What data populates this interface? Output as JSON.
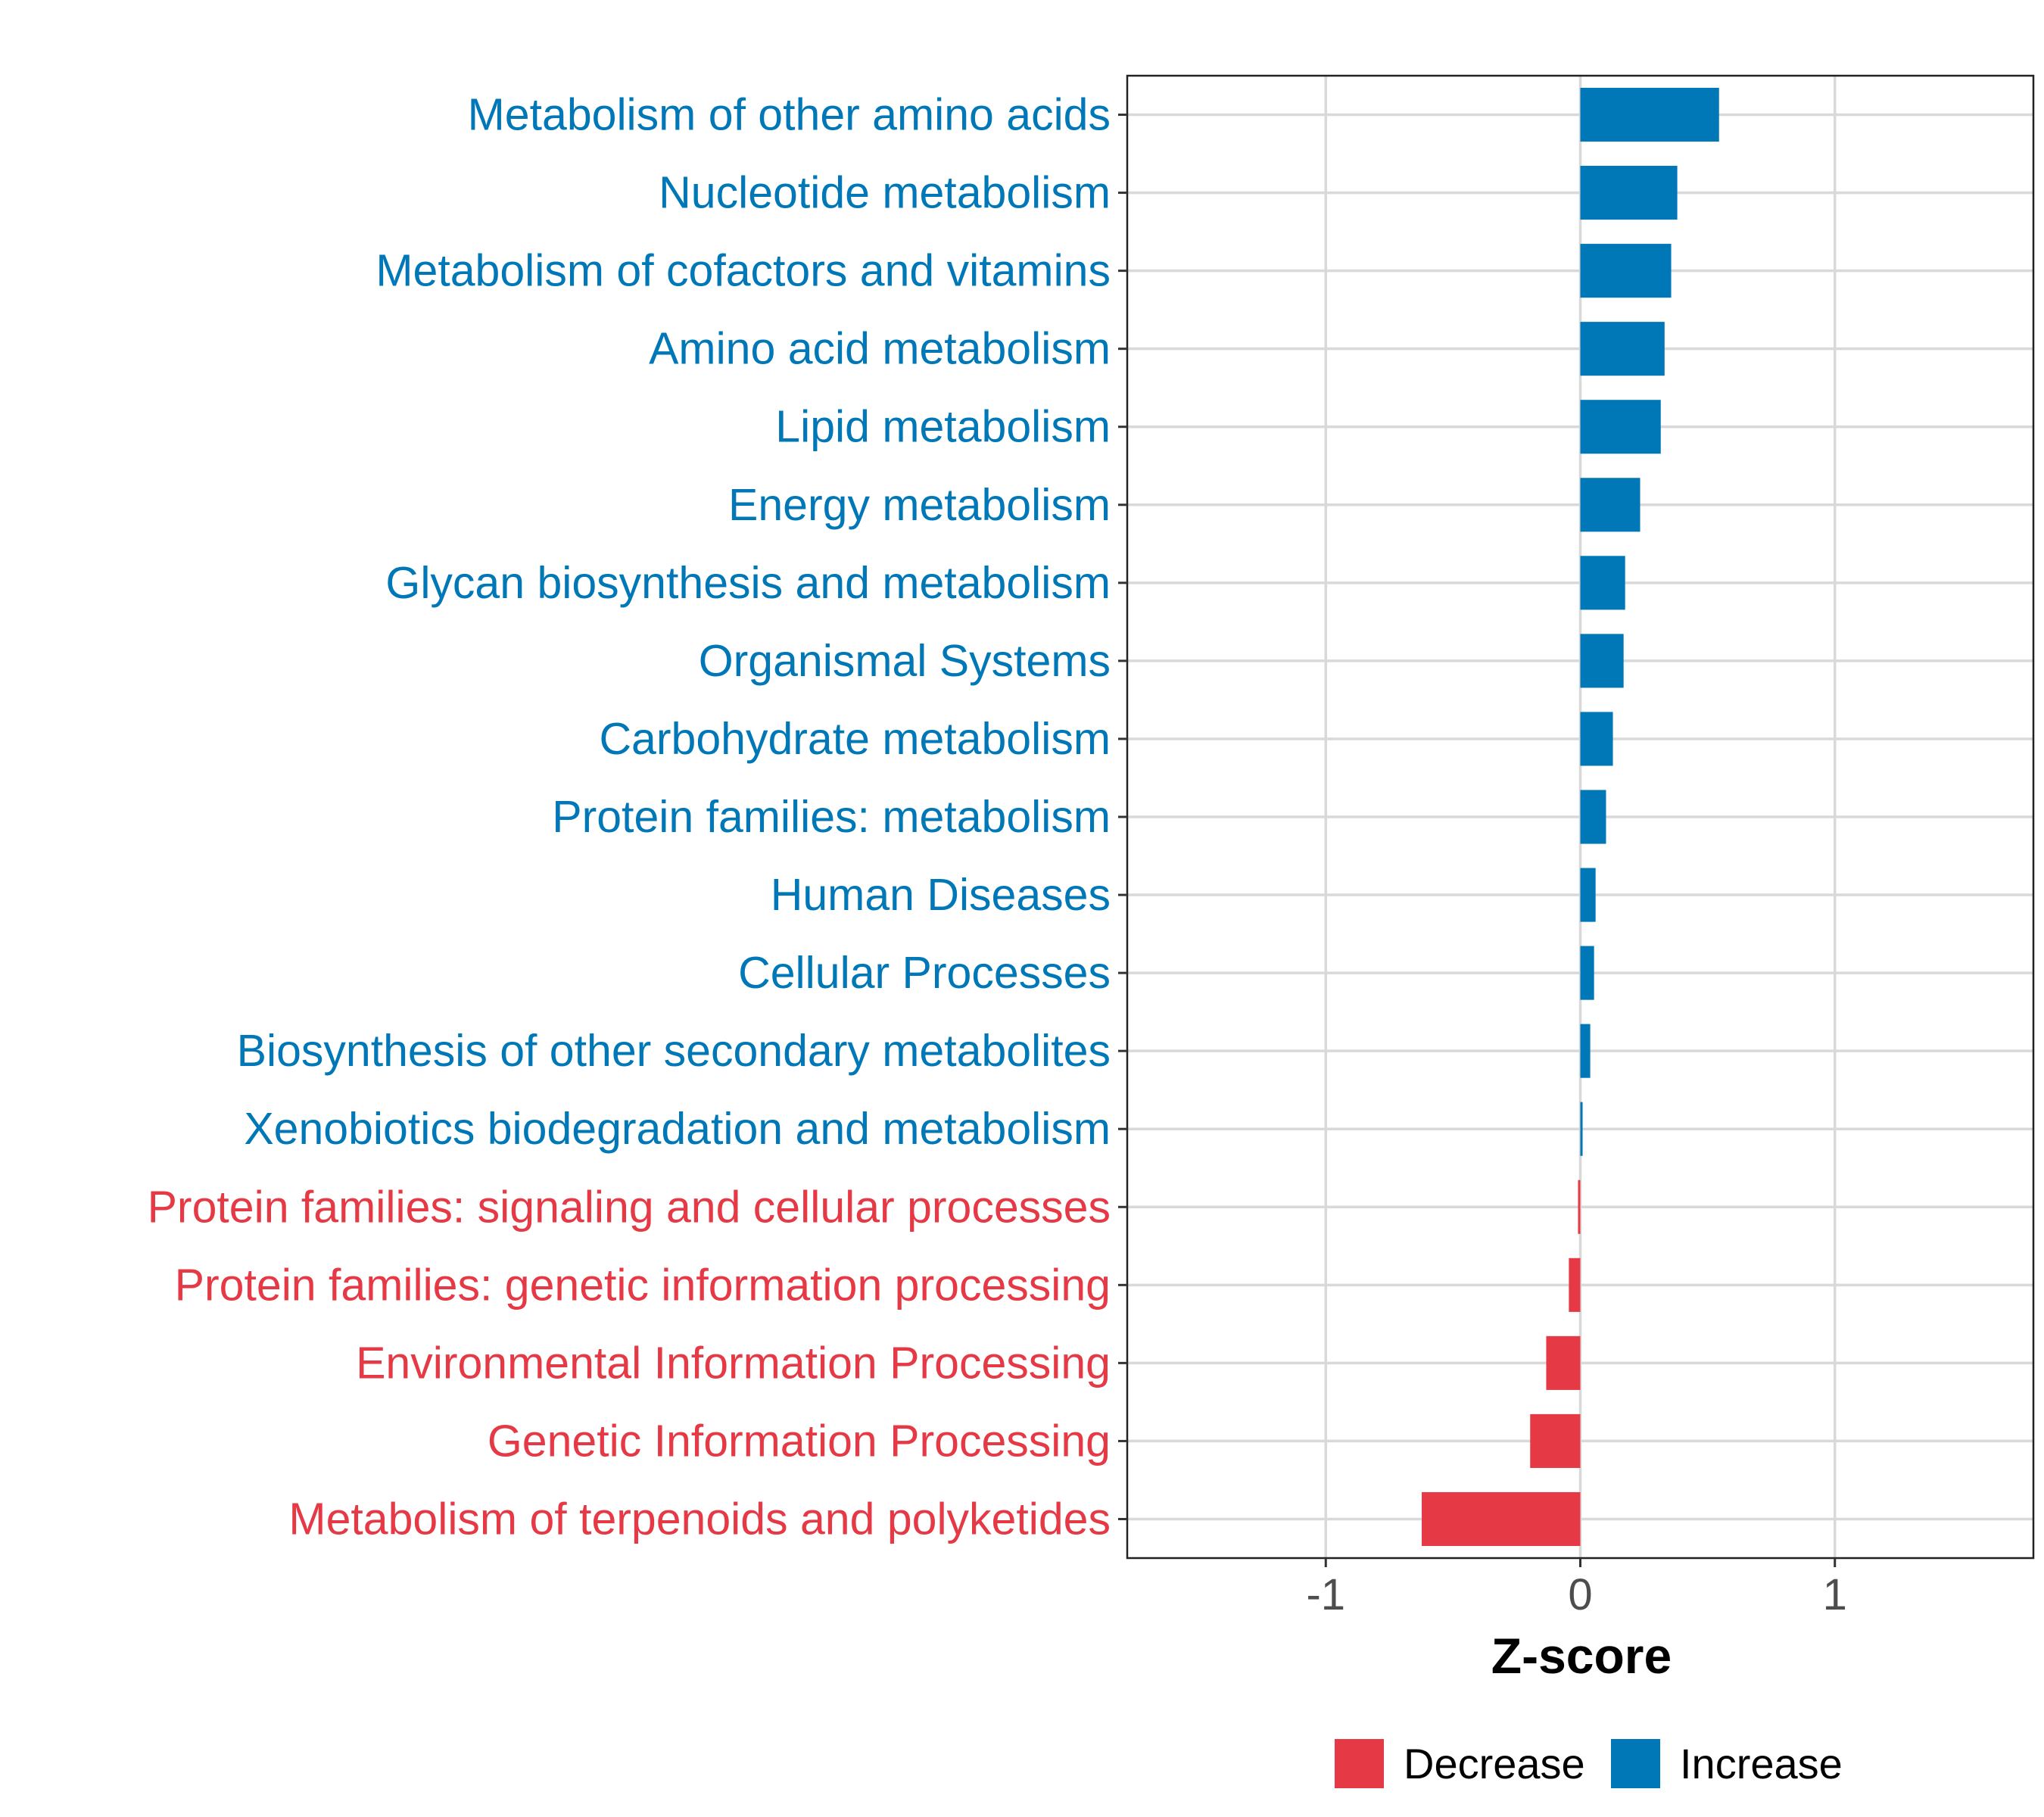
{
  "chart_data": {
    "type": "bar",
    "orientation": "horizontal",
    "title": "",
    "xlabel": "Z-score",
    "ylabel": "",
    "xlim": [
      -1.78,
      1.78
    ],
    "xticks": [
      -1,
      0,
      1
    ],
    "xtick_labels": [
      "-1",
      "0",
      "1"
    ],
    "grid": true,
    "legend_position": "bottom",
    "colors": {
      "Decrease": "#E63946",
      "Increase": "#0077B6"
    },
    "legend": [
      {
        "label": "Decrease",
        "color": "#E63946"
      },
      {
        "label": "Increase",
        "color": "#0077B6"
      }
    ],
    "categories": [
      "Metabolism of other amino acids",
      "Nucleotide metabolism",
      "Metabolism of cofactors and vitamins",
      "Amino acid metabolism",
      "Lipid metabolism",
      "Energy metabolism",
      "Glycan biosynthesis and metabolism",
      "Organismal Systems",
      "Carbohydrate metabolism",
      "Protein families: metabolism",
      "Human Diseases",
      "Cellular Processes",
      "Biosynthesis of other secondary metabolites",
      "Xenobiotics biodegradation and metabolism",
      "Protein families: signaling and cellular processes",
      "Protein families: genetic information processing",
      "Environmental Information Processing",
      "Genetic Information Processing",
      "Metabolism of terpenoids and polyketides"
    ],
    "values": [
      0.545,
      0.381,
      0.357,
      0.331,
      0.316,
      0.235,
      0.176,
      0.17,
      0.128,
      0.101,
      0.06,
      0.054,
      0.039,
      0.009,
      -0.009,
      -0.045,
      -0.134,
      -0.197,
      -0.623
    ],
    "groups": [
      "Increase",
      "Increase",
      "Increase",
      "Increase",
      "Increase",
      "Increase",
      "Increase",
      "Increase",
      "Increase",
      "Increase",
      "Increase",
      "Increase",
      "Increase",
      "Increase",
      "Decrease",
      "Decrease",
      "Decrease",
      "Decrease",
      "Decrease"
    ]
  }
}
